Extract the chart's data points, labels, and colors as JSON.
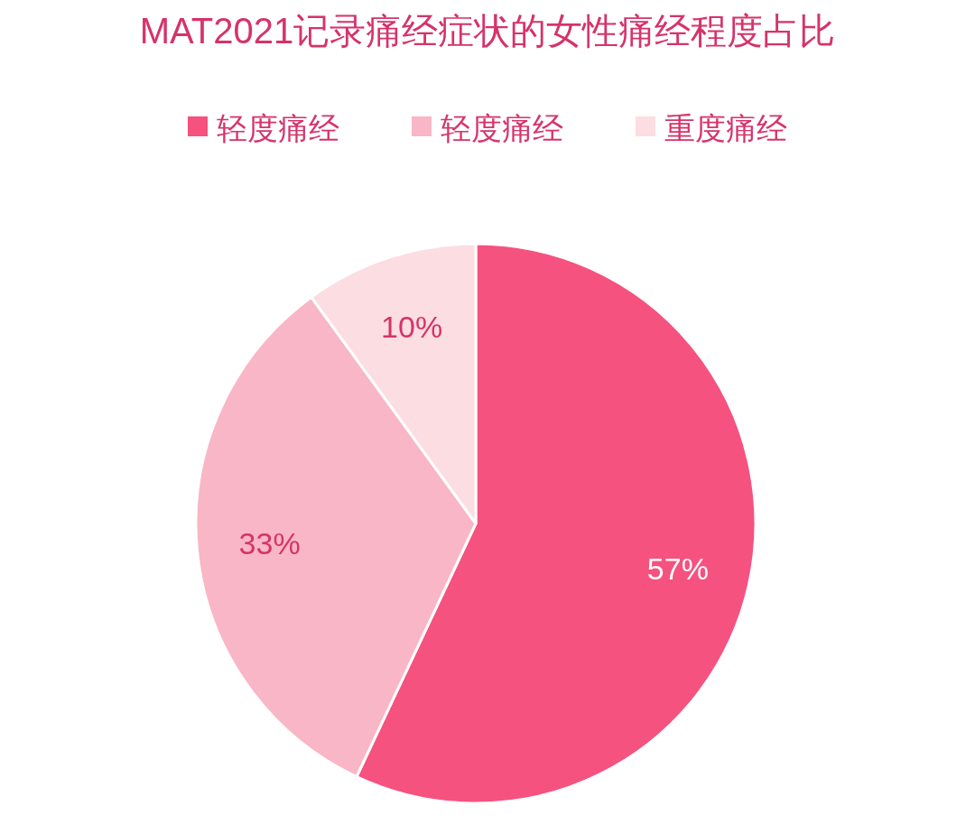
{
  "chart_data": {
    "type": "pie",
    "title": "MAT2021记录痛经症状的女性痛经程度占比",
    "categories": [
      "轻度痛经",
      "轻度痛经",
      "重度痛经"
    ],
    "values": [
      57,
      33,
      10
    ],
    "colors": [
      "#f5527f",
      "#f9b6c6",
      "#fbdde2"
    ],
    "value_labels": [
      "57%",
      "33%",
      "10%"
    ],
    "legend": "top"
  }
}
